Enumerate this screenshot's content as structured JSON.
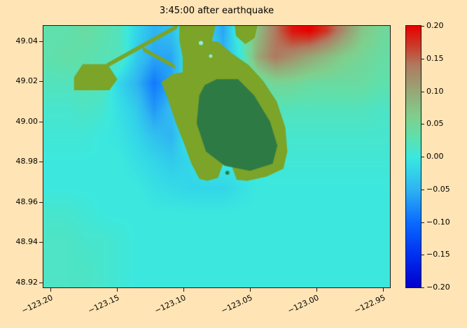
{
  "figure": {
    "title": "3:45:00 after earthquake",
    "background": "#ffe4b5"
  },
  "axes": {
    "x_tick_labels": [
      "−123.20",
      "−123.15",
      "−123.10",
      "−123.05",
      "−123.00",
      "−122.95"
    ],
    "x_tick_values": [
      -123.2,
      -123.15,
      -123.1,
      -123.05,
      -123.0,
      -122.95
    ],
    "y_tick_labels": [
      "49.04",
      "49.02",
      "49.00",
      "48.98",
      "48.96",
      "48.94",
      "48.92"
    ],
    "y_tick_values": [
      49.04,
      49.02,
      49.0,
      48.98,
      48.96,
      48.94,
      48.92
    ]
  },
  "colorbar": {
    "vmin": -0.2,
    "vmax": 0.2,
    "tick_labels": [
      "0.20",
      "0.15",
      "0.10",
      "0.05",
      "0.00",
      "−0.05",
      "−0.10",
      "−0.15",
      "−0.20"
    ],
    "tick_values": [
      0.2,
      0.15,
      0.1,
      0.05,
      0.0,
      -0.05,
      -0.1,
      -0.15,
      -0.2
    ]
  },
  "chart_data": {
    "type": "heatmap",
    "title": "3:45:00 after earthquake",
    "description": "Sea-surface displacement field 3:45:00 after earthquake, Strait of Georgia near Point Roberts; positive (red) wave offshore to the northeast, drawdown (blue) west of the peninsula, land drawn in green.",
    "extent": {
      "lon_min": -123.205,
      "lon_max": -122.945,
      "lat_min": 48.9175,
      "lat_max": 49.0475
    },
    "vmin": -0.2,
    "vmax": 0.2,
    "grid": {
      "lons": [
        -123.2,
        -123.187,
        -123.174,
        -123.161,
        -123.148,
        -123.135,
        -123.122,
        -123.109,
        -123.096,
        -123.083,
        -123.07,
        -123.057,
        -123.044,
        -123.031,
        -123.018,
        -123.005,
        -122.992,
        -122.979,
        -122.966,
        -122.953,
        -122.94
      ],
      "lats": [
        49.045,
        49.032,
        49.019,
        49.006,
        48.993,
        48.98,
        48.967,
        48.954,
        48.941,
        48.928
      ],
      "values": [
        [
          0.03,
          0.03,
          0.04,
          0.03,
          0.02,
          -0.02,
          -0.05,
          -0.04,
          0.0,
          -0.02,
          -0.06,
          0.02,
          0.08,
          0.14,
          0.19,
          0.2,
          0.17,
          0.12,
          0.07,
          0.05,
          0.04
        ],
        [
          0.03,
          0.035,
          0.03,
          0.025,
          0.02,
          -0.03,
          -0.06,
          -0.06,
          0.0,
          0.0,
          -0.05,
          0.0,
          0.1,
          0.14,
          0.12,
          0.1,
          0.08,
          0.06,
          0.05,
          0.04,
          0.035
        ],
        [
          0.02,
          0.02,
          0.025,
          0.02,
          -0.02,
          -0.05,
          -0.09,
          -0.06,
          0.0,
          0.0,
          0.0,
          0.0,
          0.03,
          0.05,
          0.05,
          0.04,
          0.04,
          0.04,
          0.04,
          0.03,
          0.03
        ],
        [
          0.01,
          0.01,
          0.015,
          0.01,
          -0.01,
          -0.03,
          -0.07,
          -0.04,
          0.0,
          0.0,
          0.0,
          0.0,
          0.01,
          0.02,
          0.02,
          0.02,
          0.02,
          0.02,
          0.02,
          0.015,
          0.015
        ],
        [
          0.005,
          0.005,
          0.005,
          0.0,
          -0.005,
          -0.02,
          -0.04,
          -0.05,
          0.0,
          0.0,
          0.0,
          0.0,
          0.0,
          0.01,
          0.01,
          0.01,
          0.01,
          0.01,
          0.01,
          0.01,
          0.01
        ],
        [
          0.0,
          0.0,
          0.0,
          0.0,
          0.0,
          -0.01,
          -0.02,
          -0.03,
          -0.02,
          0.0,
          0.0,
          0.0,
          0.0,
          0.005,
          0.005,
          0.005,
          0.005,
          0.005,
          0.005,
          0.005,
          0.005
        ],
        [
          0.0,
          0.0,
          0.0,
          0.0,
          0.0,
          0.0,
          -0.01,
          -0.015,
          -0.02,
          -0.02,
          -0.02,
          -0.01,
          0.0,
          0.0,
          0.0,
          0.0,
          0.0,
          0.0,
          0.0,
          0.0,
          0.0
        ],
        [
          0.01,
          0.01,
          0.005,
          0.0,
          0.0,
          0.0,
          0.0,
          0.0,
          0.0,
          0.0,
          0.0,
          0.0,
          0.0,
          0.0,
          0.0,
          0.0,
          0.0,
          0.0,
          0.0,
          0.0,
          0.0
        ],
        [
          0.015,
          0.015,
          0.01,
          0.01,
          0.005,
          0.0,
          0.0,
          0.0,
          0.0,
          0.0,
          0.0,
          0.0,
          0.0,
          0.0,
          0.0,
          0.0,
          0.0,
          0.0,
          0.0,
          0.0,
          0.0
        ],
        [
          0.015,
          0.015,
          0.015,
          0.01,
          0.005,
          0.0,
          0.0,
          0.0,
          0.0,
          0.0,
          0.0,
          0.0,
          0.0,
          0.0,
          0.0,
          0.0,
          0.0,
          0.0,
          0.0,
          0.0,
          0.0
        ]
      ]
    },
    "colormap": [
      {
        "v": -0.2,
        "c": "#0000cd"
      },
      {
        "v": -0.15,
        "c": "#0030f0"
      },
      {
        "v": -0.1,
        "c": "#0a6cff"
      },
      {
        "v": -0.05,
        "c": "#2fb4f2"
      },
      {
        "v": -0.02,
        "c": "#33d6e8"
      },
      {
        "v": 0.0,
        "c": "#3ce8de"
      },
      {
        "v": 0.03,
        "c": "#5fe0ac"
      },
      {
        "v": 0.06,
        "c": "#7fd08d"
      },
      {
        "v": 0.1,
        "c": "#97a877"
      },
      {
        "v": 0.14,
        "c": "#b07a60"
      },
      {
        "v": 0.17,
        "c": "#cc3a28"
      },
      {
        "v": 0.2,
        "c": "#e80000"
      }
    ],
    "land": {
      "colors": {
        "outer": "#7ba428",
        "inner": "#2e7a45",
        "flat": "#8ceee4"
      },
      "polygons": [
        {
          "name": "point-roberts-coast",
          "color": "outer",
          "pts": [
            [
              -123.103,
              49.0475
            ],
            [
              -123.076,
              49.0475
            ],
            [
              -123.0785,
              49.04
            ],
            [
              -123.0735,
              49.0395
            ],
            [
              -123.064,
              49.034
            ],
            [
              -123.051,
              49.028
            ],
            [
              -123.04,
              49.02
            ],
            [
              -123.03,
              49.01
            ],
            [
              -123.0235,
              48.997
            ],
            [
              -123.022,
              48.985
            ],
            [
              -123.025,
              48.9765
            ],
            [
              -123.038,
              48.9725
            ],
            [
              -123.052,
              48.9705
            ],
            [
              -123.06,
              48.971
            ],
            [
              -123.0635,
              48.9775
            ],
            [
              -123.0705,
              48.9785
            ],
            [
              -123.074,
              48.972
            ],
            [
              -123.082,
              48.9705
            ],
            [
              -123.088,
              48.9715
            ],
            [
              -123.094,
              48.979
            ],
            [
              -123.1,
              48.99
            ],
            [
              -123.106,
              49.0
            ],
            [
              -123.112,
              49.012
            ],
            [
              -123.1165,
              49.0195
            ],
            [
              -123.108,
              49.0235
            ],
            [
              -123.1005,
              49.0245
            ],
            [
              -123.1005,
              49.032
            ],
            [
              -123.103,
              49.04
            ]
          ]
        },
        {
          "name": "point-roberts-interior",
          "color": "inner",
          "pts": [
            [
              -123.088,
              49.013
            ],
            [
              -123.09,
              48.999
            ],
            [
              -123.083,
              48.985
            ],
            [
              -123.069,
              48.978
            ],
            [
              -123.05,
              48.9755
            ],
            [
              -123.033,
              48.979
            ],
            [
              -123.0295,
              48.988
            ],
            [
              -123.035,
              49.0
            ],
            [
              -123.047,
              49.013
            ],
            [
              -123.059,
              49.021
            ],
            [
              -123.075,
              49.021
            ],
            [
              -123.084,
              49.018
            ]
          ]
        },
        {
          "name": "port-terminal",
          "color": "outer",
          "pts": [
            [
              -123.182,
              49.0155
            ],
            [
              -123.1555,
              49.0155
            ],
            [
              -123.1495,
              49.021
            ],
            [
              -123.157,
              49.0285
            ],
            [
              -123.1755,
              49.0285
            ],
            [
              -123.182,
              49.022
            ]
          ]
        },
        {
          "name": "causeway-north",
          "color": "outer",
          "pts": [
            [
              -123.1584,
              49.0263
            ],
            [
              -123.1049,
              49.046
            ],
            [
              -123.1039,
              49.0486
            ],
            [
              -123.1574,
              49.0289
            ]
          ]
        },
        {
          "name": "causeway-south",
          "color": "outer",
          "pts": [
            [
              -123.13,
              49.0348
            ],
            [
              -123.106,
              49.0261
            ],
            [
              -123.1068,
              49.0285
            ],
            [
              -123.1308,
              49.0372
            ]
          ]
        },
        {
          "name": "mainland-shore",
          "color": "outer",
          "pts": [
            [
              -123.0615,
              49.0475
            ],
            [
              -123.0445,
              49.0475
            ],
            [
              -123.0465,
              49.0415
            ],
            [
              -123.0535,
              49.0385
            ],
            [
              -123.0605,
              49.0425
            ]
          ]
        }
      ],
      "circles": [
        {
          "name": "small-island",
          "color": "inner",
          "center": [
            -123.067,
            48.9745
          ],
          "r": 0.0015
        },
        {
          "name": "tidal-flat-1",
          "color": "flat",
          "center": [
            -123.0868,
            49.039
          ],
          "r": 0.0016
        },
        {
          "name": "tidal-flat-2",
          "color": "flat",
          "center": [
            -123.0795,
            49.0325
          ],
          "r": 0.0013
        }
      ]
    }
  }
}
